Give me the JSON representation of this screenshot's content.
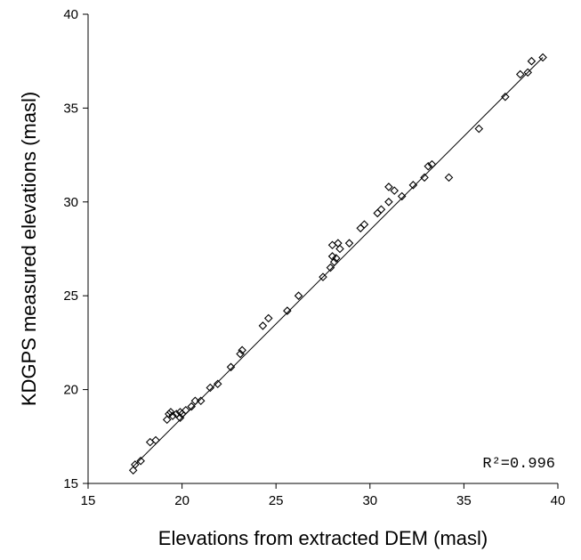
{
  "chart_data": {
    "type": "scatter",
    "xlabel": "Elevations from extracted DEM (masl)",
    "ylabel": "KDGPS measured elevations (masl)",
    "xlim": [
      15,
      40
    ],
    "ylim": [
      15,
      40
    ],
    "xticks": [
      15,
      20,
      25,
      30,
      35,
      40
    ],
    "yticks": [
      15,
      20,
      25,
      30,
      35,
      40
    ],
    "grid": false,
    "annotation": "R²=0.996",
    "fit_line": {
      "x": [
        17.4,
        39.2
      ],
      "y": [
        15.9,
        37.7
      ]
    },
    "points": [
      [
        17.4,
        15.7
      ],
      [
        17.5,
        16.0
      ],
      [
        17.8,
        16.2
      ],
      [
        18.3,
        17.2
      ],
      [
        18.6,
        17.3
      ],
      [
        19.2,
        18.4
      ],
      [
        19.3,
        18.7
      ],
      [
        19.4,
        18.8
      ],
      [
        19.5,
        18.6
      ],
      [
        19.7,
        18.7
      ],
      [
        19.9,
        18.5
      ],
      [
        19.9,
        18.8
      ],
      [
        20.0,
        18.7
      ],
      [
        20.2,
        18.9
      ],
      [
        20.5,
        19.1
      ],
      [
        20.7,
        19.4
      ],
      [
        21.0,
        19.4
      ],
      [
        21.5,
        20.1
      ],
      [
        21.9,
        20.3
      ],
      [
        22.6,
        21.2
      ],
      [
        23.1,
        21.9
      ],
      [
        23.2,
        22.1
      ],
      [
        24.3,
        23.4
      ],
      [
        24.6,
        23.8
      ],
      [
        25.6,
        24.2
      ],
      [
        26.2,
        25.0
      ],
      [
        27.5,
        26.0
      ],
      [
        27.9,
        26.5
      ],
      [
        28.0,
        27.1
      ],
      [
        28.1,
        26.8
      ],
      [
        28.2,
        27.0
      ],
      [
        28.0,
        27.7
      ],
      [
        28.3,
        27.8
      ],
      [
        28.4,
        27.5
      ],
      [
        28.9,
        27.8
      ],
      [
        29.5,
        28.6
      ],
      [
        29.7,
        28.8
      ],
      [
        30.4,
        29.4
      ],
      [
        30.6,
        29.6
      ],
      [
        31.0,
        30.0
      ],
      [
        31.0,
        30.8
      ],
      [
        31.3,
        30.6
      ],
      [
        31.7,
        30.3
      ],
      [
        32.3,
        30.9
      ],
      [
        32.9,
        31.3
      ],
      [
        33.1,
        31.9
      ],
      [
        33.3,
        32.0
      ],
      [
        34.2,
        31.3
      ],
      [
        35.8,
        33.9
      ],
      [
        37.2,
        35.6
      ],
      [
        38.0,
        36.8
      ],
      [
        38.4,
        36.9
      ],
      [
        38.6,
        37.5
      ],
      [
        39.2,
        37.7
      ]
    ]
  }
}
